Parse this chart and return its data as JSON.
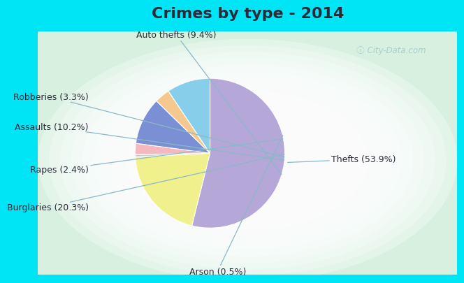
{
  "title": "Crimes by type - 2014",
  "labels": [
    "Thefts",
    "Burglaries",
    "Arson",
    "Rapes",
    "Assaults",
    "Robberies",
    "Auto thefts"
  ],
  "values": [
    53.9,
    20.3,
    0.5,
    2.4,
    10.2,
    3.3,
    9.4
  ],
  "pie_colors": [
    "#b5a8d8",
    "#f0f08c",
    "#cccccc",
    "#f5b8be",
    "#7b8fd4",
    "#f5c890",
    "#87ceeb"
  ],
  "background_cyan": "#00e5f5",
  "title_color": "#2a2a3a",
  "title_fontsize": 16,
  "label_fontsize": 9,
  "watermark": "City-Data.com",
  "label_texts": [
    "Thefts (53.9%)",
    "Burglaries (20.3%)",
    "Arson (0.5%)",
    "Rapes (2.4%)",
    "Assaults (10.2%)",
    "Robberies (3.3%)",
    "Auto thefts (9.4%)"
  ]
}
